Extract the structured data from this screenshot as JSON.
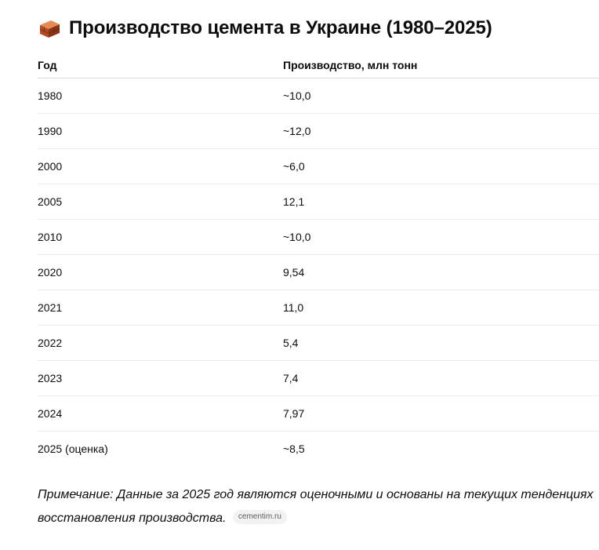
{
  "title": {
    "icon": "brick-icon",
    "text": "Производство цемента в Украине (1980–2025)"
  },
  "table": {
    "headers": [
      "Год",
      "Производство, млн тонн"
    ],
    "rows": [
      [
        "1980",
        "~10,0"
      ],
      [
        "1990",
        "~12,0"
      ],
      [
        "2000",
        "~6,0"
      ],
      [
        "2005",
        "12,1"
      ],
      [
        "2010",
        "~10,0"
      ],
      [
        "2020",
        "9,54"
      ],
      [
        "2021",
        "11,0"
      ],
      [
        "2022",
        "5,4"
      ],
      [
        "2023",
        "7,4"
      ],
      [
        "2024",
        "7,97"
      ],
      [
        "2025 (оценка)",
        "~8,5"
      ]
    ]
  },
  "note": {
    "text": "Примечание: Данные за 2025 год являются оценочными и основаны на текущих тенденциях восстановления производства.",
    "source_chip": "cementim.ru"
  },
  "colors": {
    "text": "#0d0d0d",
    "brick": "#c9582e",
    "chip_bg": "#f2f2f2"
  }
}
